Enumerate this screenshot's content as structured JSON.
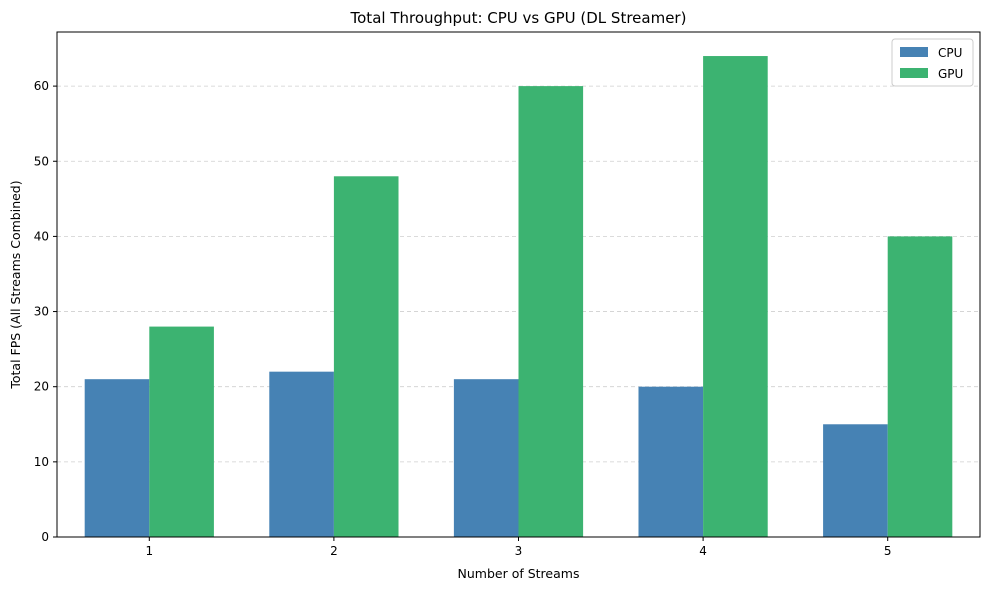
{
  "chart_data": {
    "type": "bar",
    "title": "Total Throughput: CPU vs GPU (DL Streamer)",
    "xlabel": "Number of Streams",
    "ylabel": "Total FPS (All Streams Combined)",
    "categories": [
      "1",
      "2",
      "3",
      "4",
      "5"
    ],
    "series": [
      {
        "name": "CPU",
        "color": "#4682b4",
        "values": [
          21,
          22,
          21,
          20,
          15
        ]
      },
      {
        "name": "GPU",
        "color": "#3cb371",
        "values": [
          28,
          48,
          60,
          64,
          40
        ]
      }
    ],
    "ylim": [
      0,
      67.2
    ],
    "yticks": [
      0,
      10,
      20,
      30,
      40,
      50,
      60
    ],
    "grid": "y-dashed",
    "legend": "top-right"
  }
}
